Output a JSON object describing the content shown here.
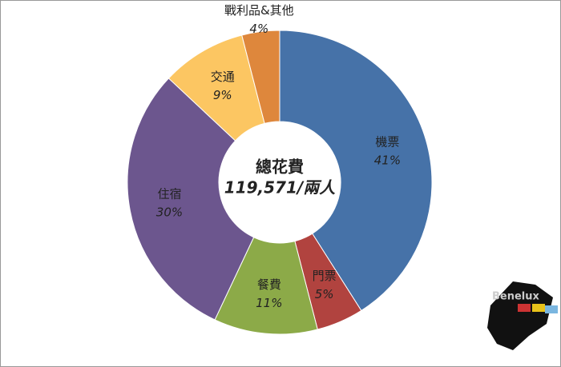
{
  "chart_data": {
    "type": "donut",
    "center_title": "總花費",
    "center_subtitle": "119,571/兩人",
    "categories": [
      "機票",
      "門票",
      "餐費",
      "住宿",
      "交通",
      "戰利品&其他"
    ],
    "values": [
      41,
      5,
      11,
      30,
      9,
      4
    ],
    "value_labels": [
      "41%",
      "5%",
      "11%",
      "30%",
      "9%",
      "4%"
    ],
    "colors": [
      "#4672a8",
      "#b1433f",
      "#8caa48",
      "#6c568e",
      "#fcc662",
      "#de873c"
    ],
    "watermark": "Benelux"
  }
}
